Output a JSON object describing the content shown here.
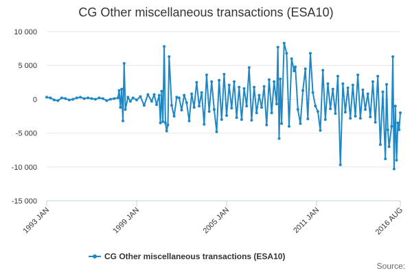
{
  "chart_data": {
    "type": "line",
    "title": "CG Other miscellaneous transactions (ESA10)",
    "xlabel": "",
    "ylabel": "",
    "x_range": [
      "1993-01",
      "2016-08"
    ],
    "ylim": [
      -15000,
      10000
    ],
    "y_ticks": [
      10000,
      5000,
      0,
      -5000,
      -10000,
      -15000
    ],
    "y_tick_labels": [
      "10 000",
      "5 000",
      "0",
      "-5 000",
      "-10 000",
      "-15 000"
    ],
    "x_ticks": [
      "1993-01",
      "1999-01",
      "2005-01",
      "2011-01",
      "2016-08"
    ],
    "x_tick_labels": [
      "1993 JAN",
      "1999 JAN",
      "2005 JAN",
      "2011 JAN",
      "2016 AUG"
    ],
    "grid": "horizontal",
    "legend_position": "bottom",
    "colors": {
      "series": "#1f88c4",
      "grid": "#e6e6e6",
      "axis": "#c0d0e0"
    },
    "series": [
      {
        "name": "CG Other miscellaneous transactions (ESA10)",
        "points": [
          [
            "1993-01",
            300
          ],
          [
            "1993-04",
            200
          ],
          [
            "1993-07",
            -100
          ],
          [
            "1993-10",
            -200
          ],
          [
            "1994-01",
            200
          ],
          [
            "1994-04",
            100
          ],
          [
            "1994-07",
            -100
          ],
          [
            "1994-10",
            0
          ],
          [
            "1995-01",
            200
          ],
          [
            "1995-04",
            300
          ],
          [
            "1995-07",
            100
          ],
          [
            "1995-10",
            200
          ],
          [
            "1996-01",
            100
          ],
          [
            "1996-04",
            0
          ],
          [
            "1996-07",
            200
          ],
          [
            "1996-10",
            100
          ],
          [
            "1997-01",
            -200
          ],
          [
            "1997-04",
            0
          ],
          [
            "1997-07",
            100
          ],
          [
            "1997-10",
            200
          ],
          [
            "1997-11",
            1300
          ],
          [
            "1997-12",
            -1200
          ],
          [
            "1998-01",
            1500
          ],
          [
            "1998-02",
            -3200
          ],
          [
            "1998-03",
            5300
          ],
          [
            "1998-04",
            -1500
          ],
          [
            "1998-06",
            300
          ],
          [
            "1998-08",
            -300
          ],
          [
            "1998-10",
            200
          ],
          [
            "1999-01",
            -100
          ],
          [
            "1999-04",
            400
          ],
          [
            "1999-07",
            -900
          ],
          [
            "1999-10",
            700
          ],
          [
            "2000-01",
            -300
          ],
          [
            "2000-03",
            700
          ],
          [
            "2000-05",
            -800
          ],
          [
            "2000-07",
            600
          ],
          [
            "2000-08",
            -3500
          ],
          [
            "2000-09",
            1200
          ],
          [
            "2000-10",
            -3300
          ],
          [
            "2000-11",
            7800
          ],
          [
            "2000-12",
            -3500
          ],
          [
            "2001-01",
            -4700
          ],
          [
            "2001-02",
            -3800
          ],
          [
            "2001-03",
            6300
          ],
          [
            "2001-05",
            -900
          ],
          [
            "2001-07",
            -2500
          ],
          [
            "2001-09",
            300
          ],
          [
            "2001-11",
            200
          ],
          [
            "2002-01",
            -1600
          ],
          [
            "2002-03",
            600
          ],
          [
            "2002-05",
            -500
          ],
          [
            "2002-07",
            -3200
          ],
          [
            "2002-09",
            800
          ],
          [
            "2002-11",
            -1200
          ],
          [
            "2003-01",
            2500
          ],
          [
            "2003-03",
            -1000
          ],
          [
            "2003-05",
            1000
          ],
          [
            "2003-07",
            -3700
          ],
          [
            "2003-09",
            3600
          ],
          [
            "2003-11",
            -1800
          ],
          [
            "2004-01",
            2600
          ],
          [
            "2004-03",
            -1500
          ],
          [
            "2004-05",
            -4800
          ],
          [
            "2004-07",
            2800
          ],
          [
            "2004-09",
            -3000
          ],
          [
            "2004-11",
            3700
          ],
          [
            "2005-01",
            -2400
          ],
          [
            "2005-03",
            2100
          ],
          [
            "2005-05",
            -1300
          ],
          [
            "2005-07",
            2600
          ],
          [
            "2005-09",
            -2700
          ],
          [
            "2005-11",
            1800
          ],
          [
            "2006-01",
            -3000
          ],
          [
            "2006-03",
            1600
          ],
          [
            "2006-05",
            -1000
          ],
          [
            "2006-07",
            4700
          ],
          [
            "2006-09",
            -3100
          ],
          [
            "2006-11",
            1800
          ],
          [
            "2007-01",
            -2000
          ],
          [
            "2007-03",
            600
          ],
          [
            "2007-05",
            -1200
          ],
          [
            "2007-07",
            1900
          ],
          [
            "2007-09",
            -3800
          ],
          [
            "2007-11",
            2900
          ],
          [
            "2008-01",
            -2000
          ],
          [
            "2008-03",
            2600
          ],
          [
            "2008-05",
            -700
          ],
          [
            "2008-06",
            7700
          ],
          [
            "2008-07",
            -5800
          ],
          [
            "2008-08",
            3000
          ],
          [
            "2008-09",
            -3600
          ],
          [
            "2008-11",
            8300
          ],
          [
            "2009-01",
            6800
          ],
          [
            "2009-03",
            -4000
          ],
          [
            "2009-05",
            6000
          ],
          [
            "2009-07",
            4200
          ],
          [
            "2009-08",
            4800
          ],
          [
            "2009-10",
            -1500
          ],
          [
            "2009-12",
            -3600
          ],
          [
            "2010-02",
            1300
          ],
          [
            "2010-04",
            4500
          ],
          [
            "2010-06",
            -2900
          ],
          [
            "2010-08",
            6800
          ],
          [
            "2010-10",
            1000
          ],
          [
            "2010-12",
            -1000
          ],
          [
            "2011-02",
            -1800
          ],
          [
            "2011-04",
            -4600
          ],
          [
            "2011-06",
            4300
          ],
          [
            "2011-08",
            -3000
          ],
          [
            "2011-10",
            2300
          ],
          [
            "2011-12",
            -1400
          ],
          [
            "2012-02",
            1500
          ],
          [
            "2012-04",
            -2100
          ],
          [
            "2012-06",
            3400
          ],
          [
            "2012-08",
            -9700
          ],
          [
            "2012-10",
            2300
          ],
          [
            "2012-12",
            -1900
          ],
          [
            "2013-02",
            1700
          ],
          [
            "2013-04",
            -2800
          ],
          [
            "2013-06",
            2100
          ],
          [
            "2013-08",
            -2500
          ],
          [
            "2013-10",
            3600
          ],
          [
            "2013-12",
            -2800
          ],
          [
            "2014-02",
            1400
          ],
          [
            "2014-04",
            -1500
          ],
          [
            "2014-06",
            800
          ],
          [
            "2014-08",
            -2600
          ],
          [
            "2014-10",
            2600
          ],
          [
            "2014-12",
            -3400
          ],
          [
            "2015-02",
            3400
          ],
          [
            "2015-04",
            -6700
          ],
          [
            "2015-06",
            1100
          ],
          [
            "2015-08",
            -8800
          ],
          [
            "2015-09",
            2200
          ],
          [
            "2015-10",
            -4500
          ],
          [
            "2015-11",
            -7000
          ],
          [
            "2016-01",
            -4000
          ],
          [
            "2016-02",
            6300
          ],
          [
            "2016-03",
            -10300
          ],
          [
            "2016-04",
            -1000
          ],
          [
            "2016-05",
            -9000
          ],
          [
            "2016-06",
            -3500
          ],
          [
            "2016-07",
            -4500
          ],
          [
            "2016-08",
            -2000
          ]
        ]
      }
    ],
    "legend": [
      "CG Other miscellaneous transactions (ESA10)"
    ],
    "credit": "Source:"
  }
}
